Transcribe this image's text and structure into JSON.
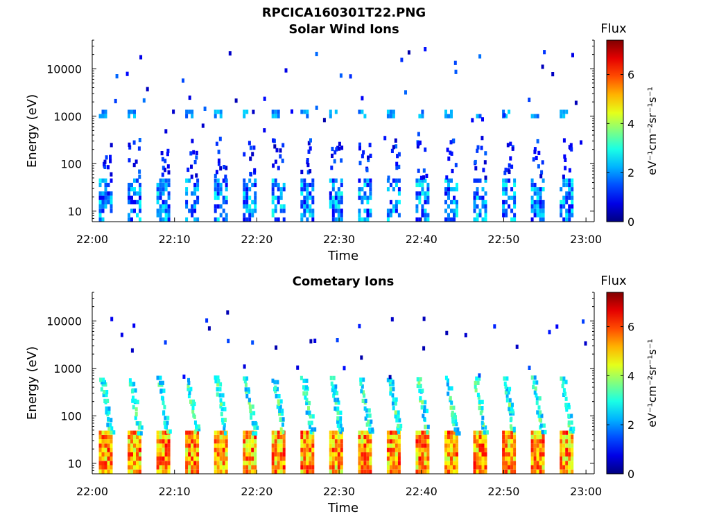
{
  "figure_title": "RPCICA160301T22.PNG",
  "chart_data": [
    {
      "type": "heatmap",
      "title": "Solar Wind Ions",
      "xlabel": "Time",
      "ylabel": "Energy (eV)",
      "x_ticks": [
        "22:00",
        "22:10",
        "22:20",
        "22:30",
        "22:40",
        "22:50",
        "23:00"
      ],
      "x_range": [
        "22:00",
        "23:01"
      ],
      "y_scale": "log",
      "y_ticks": [
        "10",
        "100",
        "1000",
        "10000"
      ],
      "y_range": [
        6,
        40000
      ],
      "colorbar": {
        "label": "Flux",
        "units": "eV⁻¹cm⁻²sr⁻¹s⁻¹",
        "ticks": [
          "0",
          "2",
          "4",
          "6"
        ],
        "range": [
          0,
          7.4
        ],
        "colormap": "jet"
      },
      "bursts": {
        "start_minute": 0.8,
        "period_minutes": 3.5,
        "count": 17,
        "low_band_ev": [
          6,
          45
        ],
        "low_band_flux": [
          0.8,
          3.0
        ],
        "mid_band_ev": [
          1000,
          1300
        ],
        "mid_band_flux": [
          1.5,
          2.5
        ]
      }
    },
    {
      "type": "heatmap",
      "title": "Cometary Ions",
      "xlabel": "Time",
      "ylabel": "Energy (eV)",
      "x_ticks": [
        "22:00",
        "22:10",
        "22:20",
        "22:30",
        "22:40",
        "22:50",
        "23:00"
      ],
      "x_range": [
        "22:00",
        "23:01"
      ],
      "y_scale": "log",
      "y_ticks": [
        "10",
        "100",
        "1000",
        "10000"
      ],
      "y_range": [
        6,
        40000
      ],
      "colorbar": {
        "label": "Flux",
        "units": "eV⁻¹cm⁻²sr⁻¹s⁻¹",
        "ticks": [
          "0",
          "2",
          "4",
          "6"
        ],
        "range": [
          0,
          7.4
        ],
        "colormap": "jet"
      },
      "bursts": {
        "start_minute": 0.8,
        "period_minutes": 3.5,
        "count": 17,
        "low_band_ev": [
          6,
          45
        ],
        "low_band_flux": [
          4.0,
          6.5
        ],
        "rising_arc_ev": [
          45,
          600
        ],
        "rising_arc_flux": [
          2.0,
          4.0
        ]
      }
    }
  ]
}
